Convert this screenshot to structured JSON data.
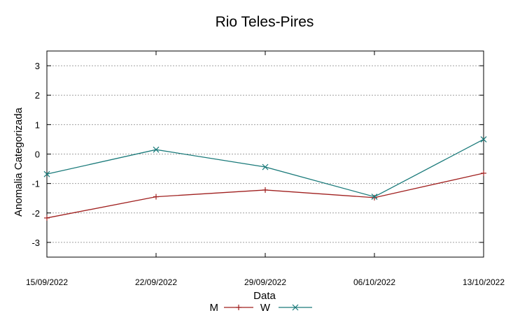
{
  "chart_data": {
    "type": "line",
    "title": "Rio Teles-Pires",
    "xlabel": "Data",
    "ylabel": "Anomalia Categorizada",
    "categories": [
      "15/09/2022",
      "22/09/2022",
      "29/09/2022",
      "06/10/2022",
      "13/10/2022"
    ],
    "ylim": [
      -3.5,
      3.5
    ],
    "yticks": [
      -3,
      -2,
      -1,
      0,
      1,
      2,
      3
    ],
    "grid": true,
    "legend_position": "bottom",
    "series": [
      {
        "name": "M",
        "color": "#a0201f",
        "marker": "plus",
        "values": [
          -2.17,
          -1.45,
          -1.22,
          -1.48,
          -0.65
        ]
      },
      {
        "name": "W",
        "color": "#1a7a7a",
        "marker": "x",
        "values": [
          -0.68,
          0.15,
          -0.44,
          -1.45,
          0.5
        ]
      }
    ]
  }
}
